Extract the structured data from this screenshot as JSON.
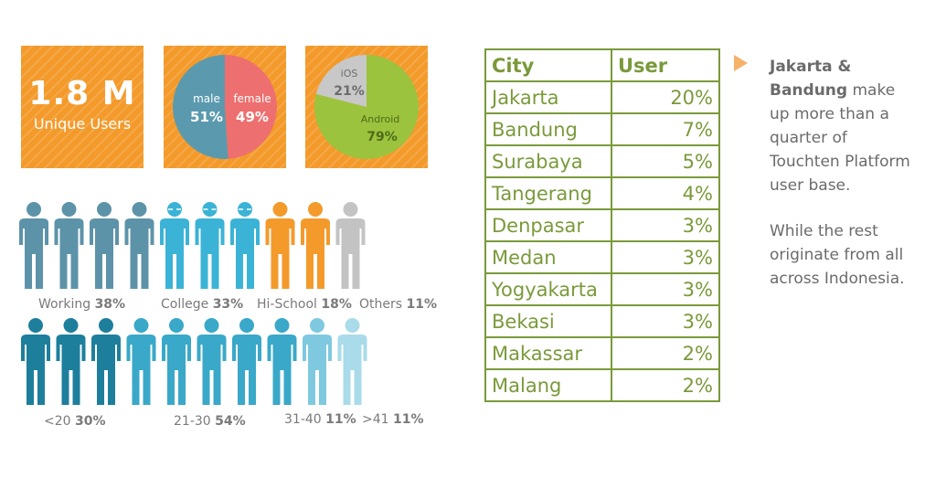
{
  "tiles": {
    "users": {
      "value": "1.8 M",
      "label": "Unique Users"
    },
    "gender": {
      "male_label": "male",
      "male_pct": "51%",
      "female_label": "female",
      "female_pct": "49%"
    },
    "os": {
      "ios_label": "iOS",
      "ios_pct": "21%",
      "android_label": "Android",
      "android_pct": "79%"
    }
  },
  "colors": {
    "orange": "#f39a2b",
    "male": "#5b9aae",
    "female": "#ee6f6f",
    "ios": "#c8c8c8",
    "android": "#9cc33d",
    "table": "#7a9a3a",
    "working": "#5d93a8",
    "college": "#3bb3d6",
    "hischool": "#f39a2b",
    "others": "#c3c3c3",
    "age_dark": "#1d7f9c",
    "age_mid": "#3aa8c8",
    "age_light": "#7ec9df",
    "age_pale": "#a9dbea"
  },
  "occupation": [
    {
      "label": "Working",
      "value": "38%"
    },
    {
      "label": "College",
      "value": "33%"
    },
    {
      "label": "Hi-School",
      "value": "18%"
    },
    {
      "label": "Others",
      "value": "11%"
    }
  ],
  "age": [
    {
      "label": "<20",
      "value": "30%"
    },
    {
      "label": "21-30",
      "value": "54%"
    },
    {
      "label": "31-40",
      "value": "11%"
    },
    {
      "label": ">41",
      "value": "11%"
    }
  ],
  "table": {
    "headers": [
      "City",
      "User"
    ],
    "rows": [
      [
        "Jakarta",
        "20%"
      ],
      [
        "Bandung",
        "7%"
      ],
      [
        "Surabaya",
        "5%"
      ],
      [
        "Tangerang",
        "4%"
      ],
      [
        "Denpasar",
        "3%"
      ],
      [
        "Medan",
        "3%"
      ],
      [
        "Yogyakarta",
        "3%"
      ],
      [
        "Bekasi",
        "3%"
      ],
      [
        "Makassar",
        "2%"
      ],
      [
        "Malang",
        "2%"
      ]
    ]
  },
  "note": {
    "bold": "Jakarta & Bandung",
    "text1": " make up more than a quarter of Touchten Platform user base.",
    "text2": "While the rest originate from all across Indonesia."
  },
  "chart_data": [
    {
      "type": "pie",
      "categories": [
        "male",
        "female"
      ],
      "values": [
        51,
        49
      ]
    },
    {
      "type": "pie",
      "categories": [
        "iOS",
        "Android"
      ],
      "values": [
        21,
        79
      ]
    },
    {
      "type": "table",
      "categories": [
        "Working",
        "College",
        "Hi-School",
        "Others"
      ],
      "values": [
        38,
        33,
        18,
        11
      ]
    },
    {
      "type": "table",
      "categories": [
        "<20",
        "21-30",
        "31-40",
        ">41"
      ],
      "values": [
        30,
        54,
        11,
        11
      ]
    },
    {
      "type": "table",
      "columns": [
        "City",
        "User"
      ],
      "categories": [
        "Jakarta",
        "Bandung",
        "Surabaya",
        "Tangerang",
        "Denpasar",
        "Medan",
        "Yogyakarta",
        "Bekasi",
        "Makassar",
        "Malang"
      ],
      "values": [
        20,
        7,
        5,
        4,
        3,
        3,
        3,
        3,
        2,
        2
      ]
    }
  ]
}
